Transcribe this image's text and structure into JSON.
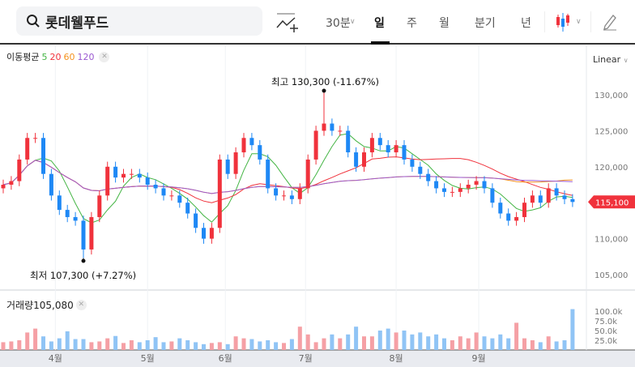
{
  "header": {
    "search_value": "롯데웰푸드",
    "tabs": [
      "30분",
      "일",
      "주",
      "월",
      "분기",
      "년"
    ],
    "active_tab": "일"
  },
  "ma_legend": {
    "label": "이동평균",
    "periods": [
      "5",
      "20",
      "60",
      "120"
    ],
    "colors": [
      "#44b544",
      "#f0323c",
      "#f5921e",
      "#9b59d0"
    ]
  },
  "scale_label": "Linear",
  "current_price": "115,100",
  "colors": {
    "up": "#f0323c",
    "down": "#1e88f5",
    "vol_up": "#f5a0a5",
    "vol_down": "#90c4f5"
  },
  "volume": {
    "label": "거래량",
    "value": "105,080"
  },
  "annotations": {
    "high": "최고 130,300 (-11.67%)",
    "low": "최저 107,300 (+7.27%)"
  },
  "chart_data": {
    "type": "candlestick",
    "y_ticks": [
      "130,000",
      "125,000",
      "120,000",
      "110,000",
      "105,000"
    ],
    "y_tick_values": [
      130000,
      125000,
      120000,
      110000,
      105000
    ],
    "ylim": [
      103000,
      135000
    ],
    "volume_ticks": [
      "100.0k",
      "75.0k",
      "50.0k",
      "25.0k"
    ],
    "x_ticks": [
      "4월",
      "5월",
      "6월",
      "7월",
      "8월",
      "9월"
    ],
    "x_tick_index": [
      6.5,
      18,
      27.7,
      37.7,
      49,
      59.3
    ],
    "high": {
      "index": 40,
      "value": 130300
    },
    "low": {
      "index": 10,
      "value": 107300
    },
    "first_open": 117000,
    "close": [
      117500,
      118000,
      121000,
      124000,
      124000,
      119000,
      116000,
      114000,
      113000,
      112500,
      108500,
      113000,
      116000,
      120000,
      118500,
      119000,
      119000,
      118500,
      117500,
      117000,
      116000,
      116000,
      115000,
      113500,
      111500,
      110000,
      111500,
      121000,
      119000,
      122000,
      124000,
      123000,
      121000,
      117000,
      116000,
      116000,
      115500,
      117000,
      121000,
      125000,
      126000,
      125000,
      125000,
      122000,
      120000,
      122000,
      124000,
      123000,
      122000,
      123000,
      121000,
      120000,
      119000,
      118000,
      117000,
      116500,
      116500,
      117000,
      117500,
      118000,
      117000,
      115000,
      113500,
      112500,
      113000,
      115000,
      116000,
      115000,
      117000,
      116000,
      115500,
      115100
    ],
    "volume_k": [
      20,
      22,
      25,
      45,
      55,
      35,
      22,
      30,
      48,
      28,
      28,
      20,
      22,
      30,
      36,
      18,
      25,
      20,
      25,
      33,
      20,
      22,
      30,
      25,
      20,
      15,
      18,
      20,
      15,
      35,
      30,
      28,
      22,
      25,
      20,
      18,
      28,
      60,
      40,
      20,
      30,
      40,
      30,
      40,
      60,
      35,
      35,
      50,
      55,
      45,
      50,
      40,
      45,
      35,
      40,
      30,
      25,
      35,
      30,
      45,
      35,
      30,
      40,
      30,
      70,
      30,
      25,
      20,
      35,
      22,
      25,
      105.08
    ]
  }
}
